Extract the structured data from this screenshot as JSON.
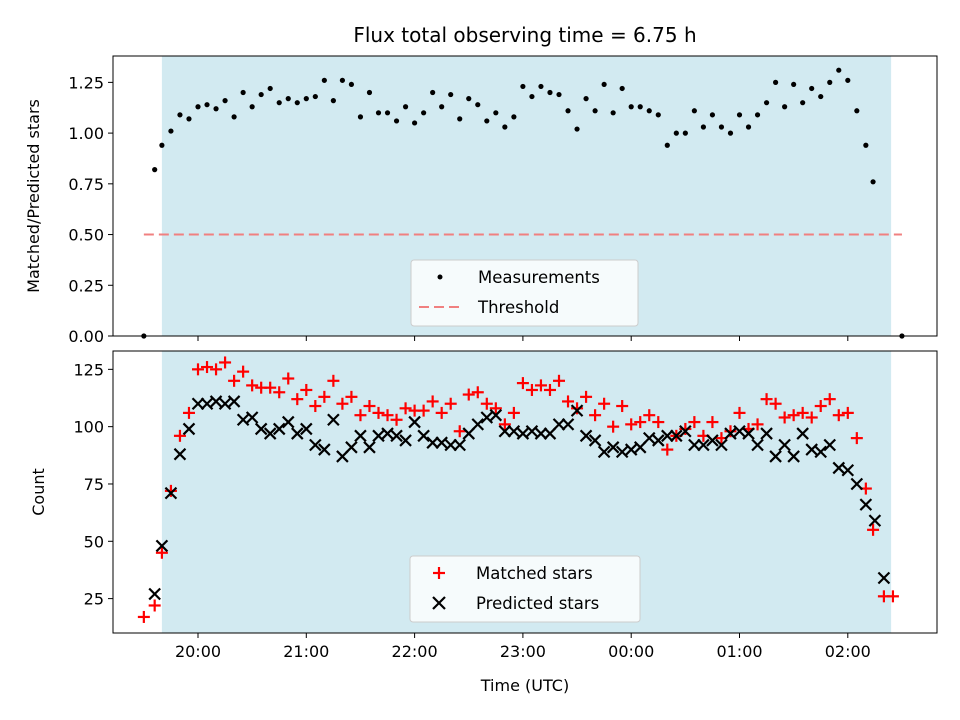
{
  "chart_data": [
    {
      "type": "scatter",
      "title": "Flux total observing time = 6.75 h",
      "xlabel": "",
      "ylabel": "Matched/Predicted stars",
      "ylim": [
        0,
        1.38
      ],
      "yticks": [
        "0.00",
        "0.25",
        "0.50",
        "0.75",
        "1.00",
        "1.25"
      ],
      "shaded_region": {
        "from": "19:40",
        "to": "02:24",
        "color": "#add8e6"
      },
      "threshold": {
        "name": "Threshold",
        "value": 0.5,
        "from": "19:30",
        "to": "02:30",
        "color": "#f08080"
      },
      "legend": {
        "position": "bottom-center",
        "entries": [
          "Measurements",
          "Threshold"
        ]
      },
      "series": [
        {
          "name": "Measurements",
          "marker": "dot",
          "color": "#000000",
          "points": [
            [
              "19:30",
              0.0
            ],
            [
              "19:36",
              0.82
            ],
            [
              "19:40",
              0.94
            ],
            [
              "19:45",
              1.01
            ],
            [
              "19:50",
              1.09
            ],
            [
              "19:55",
              1.07
            ],
            [
              "20:00",
              1.13
            ],
            [
              "20:05",
              1.14
            ],
            [
              "20:10",
              1.12
            ],
            [
              "20:15",
              1.16
            ],
            [
              "20:20",
              1.08
            ],
            [
              "20:25",
              1.2
            ],
            [
              "20:30",
              1.13
            ],
            [
              "20:35",
              1.19
            ],
            [
              "20:40",
              1.22
            ],
            [
              "20:45",
              1.15
            ],
            [
              "20:50",
              1.17
            ],
            [
              "20:55",
              1.15
            ],
            [
              "21:00",
              1.17
            ],
            [
              "21:05",
              1.18
            ],
            [
              "21:10",
              1.26
            ],
            [
              "21:15",
              1.16
            ],
            [
              "21:20",
              1.26
            ],
            [
              "21:25",
              1.24
            ],
            [
              "21:30",
              1.08
            ],
            [
              "21:35",
              1.2
            ],
            [
              "21:40",
              1.1
            ],
            [
              "21:45",
              1.1
            ],
            [
              "21:50",
              1.06
            ],
            [
              "21:55",
              1.13
            ],
            [
              "22:00",
              1.05
            ],
            [
              "22:05",
              1.1
            ],
            [
              "22:10",
              1.2
            ],
            [
              "22:15",
              1.13
            ],
            [
              "22:20",
              1.19
            ],
            [
              "22:25",
              1.07
            ],
            [
              "22:30",
              1.17
            ],
            [
              "22:35",
              1.14
            ],
            [
              "22:40",
              1.06
            ],
            [
              "22:45",
              1.1
            ],
            [
              "22:50",
              1.03
            ],
            [
              "22:55",
              1.08
            ],
            [
              "23:00",
              1.23
            ],
            [
              "23:05",
              1.18
            ],
            [
              "23:10",
              1.23
            ],
            [
              "23:15",
              1.2
            ],
            [
              "23:20",
              1.19
            ],
            [
              "23:25",
              1.11
            ],
            [
              "23:30",
              1.02
            ],
            [
              "23:35",
              1.17
            ],
            [
              "23:40",
              1.11
            ],
            [
              "23:45",
              1.24
            ],
            [
              "23:50",
              1.1
            ],
            [
              "23:55",
              1.22
            ],
            [
              "00:00",
              1.13
            ],
            [
              "00:05",
              1.13
            ],
            [
              "00:10",
              1.11
            ],
            [
              "00:15",
              1.09
            ],
            [
              "00:20",
              0.94
            ],
            [
              "00:25",
              1.0
            ],
            [
              "00:30",
              1.0
            ],
            [
              "00:35",
              1.11
            ],
            [
              "00:40",
              1.03
            ],
            [
              "00:45",
              1.09
            ],
            [
              "00:50",
              1.03
            ],
            [
              "00:55",
              1.0
            ],
            [
              "01:00",
              1.09
            ],
            [
              "01:05",
              1.03
            ],
            [
              "01:10",
              1.09
            ],
            [
              "01:15",
              1.15
            ],
            [
              "01:20",
              1.25
            ],
            [
              "01:25",
              1.13
            ],
            [
              "01:30",
              1.24
            ],
            [
              "01:35",
              1.15
            ],
            [
              "01:40",
              1.22
            ],
            [
              "01:45",
              1.18
            ],
            [
              "01:50",
              1.25
            ],
            [
              "01:55",
              1.31
            ],
            [
              "02:00",
              1.26
            ],
            [
              "02:05",
              1.11
            ],
            [
              "02:10",
              0.94
            ],
            [
              "02:14",
              0.76
            ],
            [
              "02:30",
              0.0
            ]
          ]
        }
      ]
    },
    {
      "type": "scatter",
      "title": "",
      "xlabel": "Time (UTC)",
      "ylabel": "Count",
      "ylim": [
        10,
        133
      ],
      "yticks": [
        "25",
        "50",
        "75",
        "100",
        "125"
      ],
      "xticks": [
        "20:00",
        "21:00",
        "22:00",
        "23:00",
        "00:00",
        "01:00",
        "02:00"
      ],
      "shaded_region": {
        "from": "19:40",
        "to": "02:24",
        "color": "#add8e6"
      },
      "legend": {
        "position": "bottom-center",
        "entries": [
          "Matched stars",
          "Predicted stars"
        ]
      },
      "series": [
        {
          "name": "Matched stars",
          "marker": "plus",
          "color": "#ff0000",
          "points": [
            [
              "19:30",
              17
            ],
            [
              "19:36",
              22
            ],
            [
              "19:40",
              45
            ],
            [
              "19:45",
              72
            ],
            [
              "19:50",
              96
            ],
            [
              "19:55",
              106
            ],
            [
              "20:00",
              125
            ],
            [
              "20:05",
              126
            ],
            [
              "20:10",
              125
            ],
            [
              "20:15",
              128
            ],
            [
              "20:20",
              120
            ],
            [
              "20:25",
              124
            ],
            [
              "20:30",
              118
            ],
            [
              "20:35",
              117
            ],
            [
              "20:40",
              117
            ],
            [
              "20:45",
              115
            ],
            [
              "20:50",
              121
            ],
            [
              "20:55",
              112
            ],
            [
              "21:00",
              116
            ],
            [
              "21:05",
              109
            ],
            [
              "21:10",
              113
            ],
            [
              "21:15",
              120
            ],
            [
              "21:20",
              110
            ],
            [
              "21:25",
              113
            ],
            [
              "21:30",
              105
            ],
            [
              "21:35",
              109
            ],
            [
              "21:40",
              106
            ],
            [
              "21:45",
              105
            ],
            [
              "21:50",
              103
            ],
            [
              "21:55",
              108
            ],
            [
              "22:00",
              107
            ],
            [
              "22:05",
              107
            ],
            [
              "22:10",
              111
            ],
            [
              "22:15",
              106
            ],
            [
              "22:20",
              110
            ],
            [
              "22:25",
              98
            ],
            [
              "22:30",
              114
            ],
            [
              "22:35",
              115
            ],
            [
              "22:40",
              110
            ],
            [
              "22:45",
              108
            ],
            [
              "22:50",
              101
            ],
            [
              "22:55",
              106
            ],
            [
              "23:00",
              119
            ],
            [
              "23:05",
              116
            ],
            [
              "23:10",
              118
            ],
            [
              "23:15",
              116
            ],
            [
              "23:20",
              120
            ],
            [
              "23:25",
              111
            ],
            [
              "23:30",
              108
            ],
            [
              "23:35",
              113
            ],
            [
              "23:40",
              105
            ],
            [
              "23:45",
              110
            ],
            [
              "23:50",
              100
            ],
            [
              "23:55",
              109
            ],
            [
              "00:00",
              101
            ],
            [
              "00:05",
              102
            ],
            [
              "00:10",
              105
            ],
            [
              "00:15",
              102
            ],
            [
              "00:20",
              90
            ],
            [
              "00:25",
              96
            ],
            [
              "00:30",
              99
            ],
            [
              "00:35",
              102
            ],
            [
              "00:40",
              96
            ],
            [
              "00:45",
              102
            ],
            [
              "00:50",
              95
            ],
            [
              "00:55",
              98
            ],
            [
              "01:00",
              106
            ],
            [
              "01:05",
              99
            ],
            [
              "01:10",
              101
            ],
            [
              "01:15",
              112
            ],
            [
              "01:20",
              110
            ],
            [
              "01:25",
              104
            ],
            [
              "01:30",
              105
            ],
            [
              "01:35",
              106
            ],
            [
              "01:40",
              104
            ],
            [
              "01:45",
              109
            ],
            [
              "01:50",
              112
            ],
            [
              "01:55",
              105
            ],
            [
              "02:00",
              106
            ],
            [
              "02:05",
              95
            ],
            [
              "02:10",
              73
            ],
            [
              "02:14",
              55
            ],
            [
              "02:20",
              26
            ],
            [
              "02:25",
              26
            ]
          ]
        },
        {
          "name": "Predicted stars",
          "marker": "x",
          "color": "#000000",
          "points": [
            [
              "19:36",
              27
            ],
            [
              "19:40",
              48
            ],
            [
              "19:45",
              71
            ],
            [
              "19:50",
              88
            ],
            [
              "19:55",
              99
            ],
            [
              "20:00",
              110
            ],
            [
              "20:05",
              110
            ],
            [
              "20:10",
              111
            ],
            [
              "20:15",
              110
            ],
            [
              "20:20",
              111
            ],
            [
              "20:25",
              103
            ],
            [
              "20:30",
              104
            ],
            [
              "20:35",
              99
            ],
            [
              "20:40",
              97
            ],
            [
              "20:45",
              99
            ],
            [
              "20:50",
              102
            ],
            [
              "20:55",
              97
            ],
            [
              "21:00",
              99
            ],
            [
              "21:05",
              92
            ],
            [
              "21:10",
              90
            ],
            [
              "21:15",
              103
            ],
            [
              "21:20",
              87
            ],
            [
              "21:25",
              91
            ],
            [
              "21:30",
              96
            ],
            [
              "21:35",
              91
            ],
            [
              "21:40",
              96
            ],
            [
              "21:45",
              97
            ],
            [
              "21:50",
              96
            ],
            [
              "21:55",
              94
            ],
            [
              "22:00",
              102
            ],
            [
              "22:05",
              96
            ],
            [
              "22:10",
              93
            ],
            [
              "22:15",
              93
            ],
            [
              "22:20",
              92
            ],
            [
              "22:25",
              92
            ],
            [
              "22:30",
              97
            ],
            [
              "22:35",
              101
            ],
            [
              "22:40",
              104
            ],
            [
              "22:45",
              105
            ],
            [
              "22:50",
              98
            ],
            [
              "22:55",
              98
            ],
            [
              "23:00",
              97
            ],
            [
              "23:05",
              98
            ],
            [
              "23:10",
              97
            ],
            [
              "23:15",
              97
            ],
            [
              "23:20",
              101
            ],
            [
              "23:25",
              101
            ],
            [
              "23:30",
              107
            ],
            [
              "23:35",
              96
            ],
            [
              "23:40",
              94
            ],
            [
              "23:45",
              89
            ],
            [
              "23:50",
              91
            ],
            [
              "23:55",
              89
            ],
            [
              "00:00",
              90
            ],
            [
              "00:05",
              91
            ],
            [
              "00:10",
              95
            ],
            [
              "00:15",
              94
            ],
            [
              "00:20",
              96
            ],
            [
              "00:25",
              96
            ],
            [
              "00:30",
              98
            ],
            [
              "00:35",
              92
            ],
            [
              "00:40",
              92
            ],
            [
              "00:45",
              94
            ],
            [
              "00:50",
              92
            ],
            [
              "00:55",
              97
            ],
            [
              "01:00",
              98
            ],
            [
              "01:05",
              97
            ],
            [
              "01:10",
              92
            ],
            [
              "01:15",
              97
            ],
            [
              "01:20",
              87
            ],
            [
              "01:25",
              92
            ],
            [
              "01:30",
              87
            ],
            [
              "01:35",
              97
            ],
            [
              "01:40",
              90
            ],
            [
              "01:45",
              89
            ],
            [
              "01:50",
              92
            ],
            [
              "01:55",
              82
            ],
            [
              "02:00",
              81
            ],
            [
              "02:05",
              75
            ],
            [
              "02:10",
              66
            ],
            [
              "02:15",
              59
            ],
            [
              "02:20",
              34
            ]
          ]
        }
      ]
    }
  ]
}
